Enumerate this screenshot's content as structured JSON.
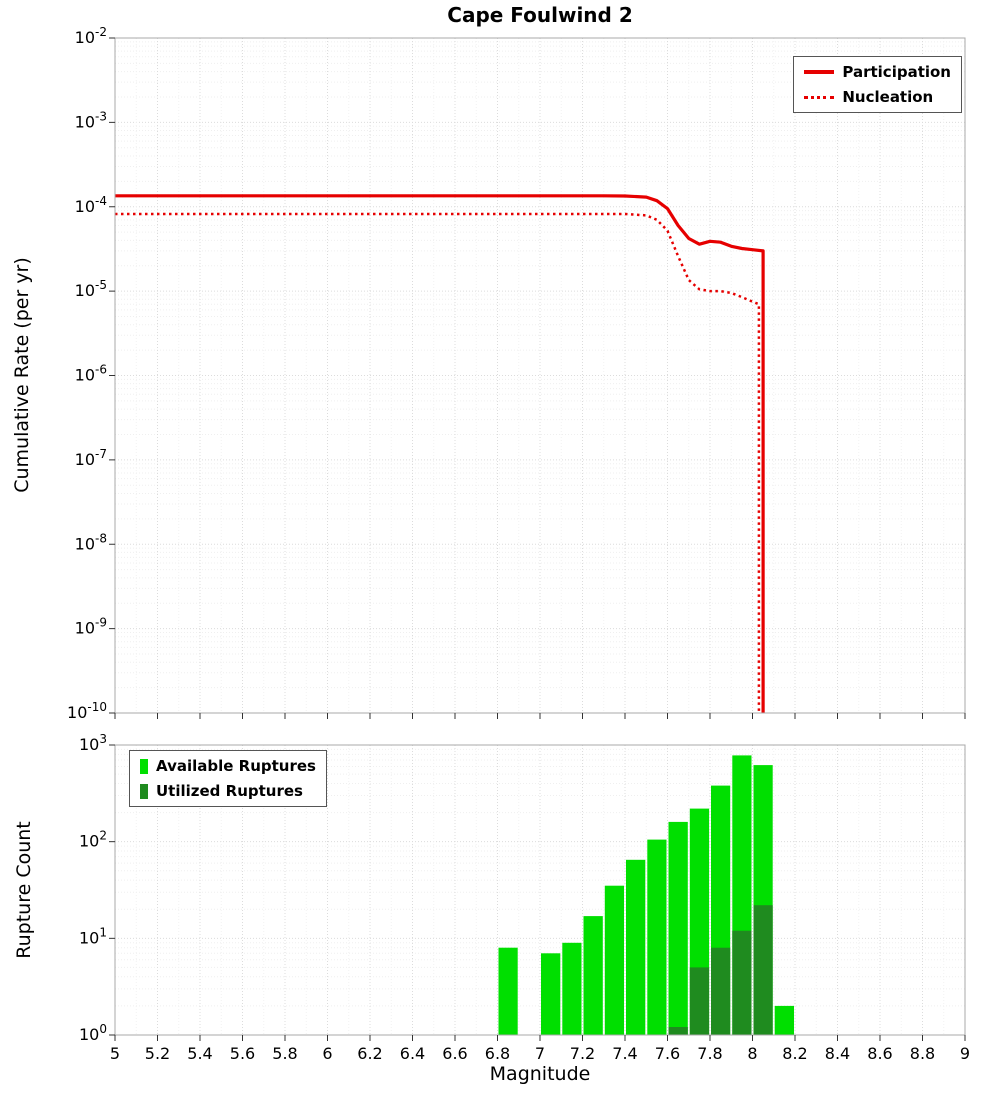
{
  "page_title": "Cape Foulwind 2",
  "chart_data": [
    {
      "type": "line",
      "title": "Cape Foulwind 2",
      "xlabel": "Magnitude",
      "ylabel": "Cumulative Rate (per yr)",
      "xlim": [
        5,
        9
      ],
      "ylim_log10": [
        -10,
        -2
      ],
      "grid": true,
      "show_x_tick_labels": false,
      "x_tick_labels": [
        "5",
        "5.2",
        "5.4",
        "5.6",
        "5.8",
        "6",
        "6.2",
        "6.4",
        "6.6",
        "6.8",
        "7",
        "7.2",
        "7.4",
        "7.6",
        "7.8",
        "8",
        "8.2",
        "8.4",
        "8.6",
        "8.8",
        "9"
      ],
      "y_tick_exponents": [
        -2,
        -3,
        -4,
        -5,
        -6,
        -7,
        -8,
        -9,
        -10
      ],
      "legend": {
        "position": "top-right",
        "entries": [
          {
            "label": "Participation",
            "style": "solid",
            "color": "#e60000"
          },
          {
            "label": "Nucleation",
            "style": "dotted",
            "color": "#e60000"
          }
        ]
      },
      "series": [
        {
          "name": "Participation",
          "style": "solid",
          "color": "#e60000",
          "points": [
            [
              5.0,
              0.000135
            ],
            [
              5.5,
              0.000135
            ],
            [
              6.0,
              0.000135
            ],
            [
              6.5,
              0.000135
            ],
            [
              7.0,
              0.000135
            ],
            [
              7.3,
              0.000135
            ],
            [
              7.4,
              0.000134
            ],
            [
              7.5,
              0.00013
            ],
            [
              7.55,
              0.000118
            ],
            [
              7.6,
              9.5e-05
            ],
            [
              7.65,
              6e-05
            ],
            [
              7.7,
              4.2e-05
            ],
            [
              7.75,
              3.6e-05
            ],
            [
              7.8,
              3.9e-05
            ],
            [
              7.85,
              3.8e-05
            ],
            [
              7.9,
              3.4e-05
            ],
            [
              7.95,
              3.2e-05
            ],
            [
              8.0,
              3.1e-05
            ],
            [
              8.05,
              3e-05
            ],
            [
              8.05,
              1e-10
            ]
          ]
        },
        {
          "name": "Nucleation",
          "style": "dotted",
          "color": "#e60000",
          "points": [
            [
              5.0,
              8.2e-05
            ],
            [
              5.5,
              8.2e-05
            ],
            [
              6.0,
              8.2e-05
            ],
            [
              6.5,
              8.2e-05
            ],
            [
              7.0,
              8.2e-05
            ],
            [
              7.4,
              8.2e-05
            ],
            [
              7.5,
              7.9e-05
            ],
            [
              7.55,
              7e-05
            ],
            [
              7.6,
              5.2e-05
            ],
            [
              7.65,
              2.6e-05
            ],
            [
              7.7,
              1.35e-05
            ],
            [
              7.75,
              1.05e-05
            ],
            [
              7.8,
              1e-05
            ],
            [
              7.85,
              1e-05
            ],
            [
              7.9,
              9.5e-06
            ],
            [
              7.95,
              8.5e-06
            ],
            [
              8.0,
              7.5e-06
            ],
            [
              8.03,
              7e-06
            ],
            [
              8.03,
              1e-10
            ]
          ]
        }
      ]
    },
    {
      "type": "bar",
      "title": "",
      "xlabel": "Magnitude",
      "ylabel": "Rupture Count",
      "xlim": [
        5,
        9
      ],
      "ylim_log10": [
        0,
        3
      ],
      "grid": true,
      "show_x_tick_labels": true,
      "x_tick_labels": [
        "5",
        "5.2",
        "5.4",
        "5.6",
        "5.8",
        "6",
        "6.2",
        "6.4",
        "6.6",
        "6.8",
        "7",
        "7.2",
        "7.4",
        "7.6",
        "7.8",
        "8",
        "8.2",
        "8.4",
        "8.6",
        "8.8",
        "9"
      ],
      "y_tick_exponents": [
        0,
        1,
        2,
        3
      ],
      "bin_width": 0.1,
      "legend": {
        "position": "top-left",
        "entries": [
          {
            "label": "Available Ruptures",
            "color": "#00df00"
          },
          {
            "label": "Utilized Ruptures",
            "color": "#1f8b1f"
          }
        ]
      },
      "series": [
        {
          "name": "Available Ruptures",
          "color": "#00df00",
          "bars": [
            {
              "m": 6.8,
              "count": 8
            },
            {
              "m": 7.0,
              "count": 7
            },
            {
              "m": 7.1,
              "count": 9
            },
            {
              "m": 7.2,
              "count": 17
            },
            {
              "m": 7.3,
              "count": 35
            },
            {
              "m": 7.4,
              "count": 65
            },
            {
              "m": 7.5,
              "count": 105
            },
            {
              "m": 7.6,
              "count": 160
            },
            {
              "m": 7.7,
              "count": 220
            },
            {
              "m": 7.8,
              "count": 380
            },
            {
              "m": 7.9,
              "count": 780
            },
            {
              "m": 8.0,
              "count": 620
            },
            {
              "m": 8.1,
              "count": 2
            }
          ]
        },
        {
          "name": "Utilized Ruptures",
          "color": "#1f8b1f",
          "bars": [
            {
              "m": 7.6,
              "count": 1
            },
            {
              "m": 7.7,
              "count": 5
            },
            {
              "m": 7.8,
              "count": 8
            },
            {
              "m": 7.9,
              "count": 12
            },
            {
              "m": 8.0,
              "count": 22
            }
          ]
        }
      ]
    }
  ]
}
